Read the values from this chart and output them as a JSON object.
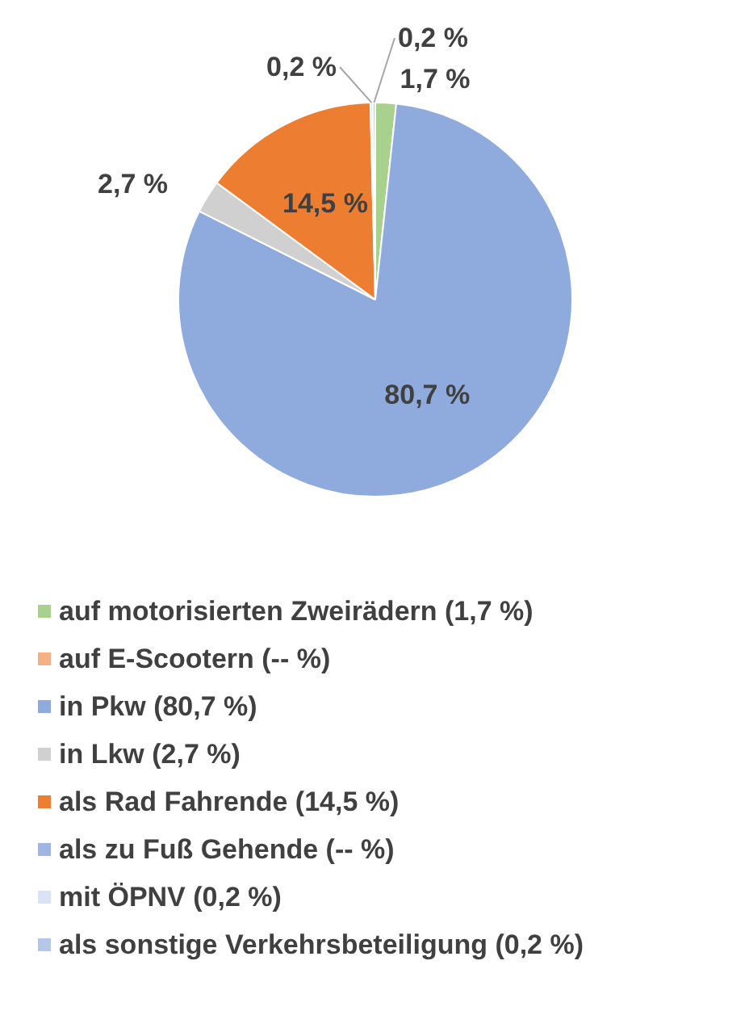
{
  "chart_data": {
    "type": "pie",
    "categories": [
      "auf motorisierten Zweirädern (1,7 %)",
      "auf E-Scootern (-- %)",
      "in Pkw (80,7 %)",
      "in Lkw (2,7 %)",
      "als Rad Fahrende (14,5 %)",
      "als zu Fuß Gehende (-- %)",
      "mit ÖPNV (0,2 %)",
      "als sonstige Verkehrsbeteiligung (0,2 %)"
    ],
    "values": [
      1.7,
      null,
      80.7,
      2.7,
      14.5,
      null,
      0.2,
      0.2
    ],
    "colors": [
      "#a9d18e",
      "#f4b183",
      "#8faadc",
      "#d0d0d0",
      "#ed7d31",
      "#9fb6e2",
      "#dae3f3",
      "#b4c7e7"
    ],
    "value_labels": [
      "1,7 %",
      null,
      "80,7 %",
      "2,7 %",
      "14,5 %",
      null,
      "0,2 %",
      "0,2 %"
    ],
    "legend": "bottom"
  }
}
